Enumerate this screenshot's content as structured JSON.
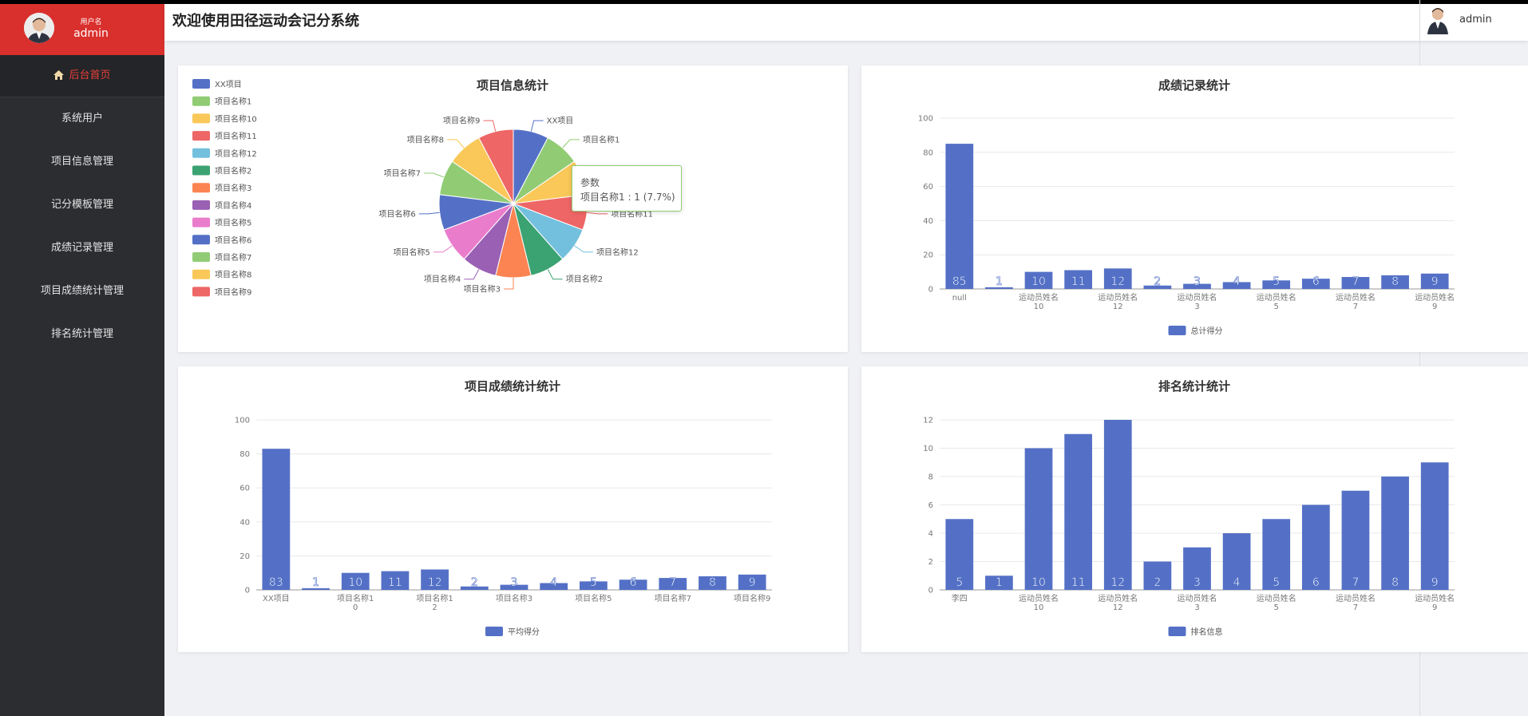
{
  "app": {
    "title": "欢迎使用田径运动会记分系统",
    "user_caption": "用户名",
    "username": "admin",
    "header_username": "admin"
  },
  "sidebar": {
    "items": [
      {
        "label": "后台首页",
        "icon": "home-icon",
        "active": true
      },
      {
        "label": "系统用户"
      },
      {
        "label": "项目信息管理"
      },
      {
        "label": "记分模板管理"
      },
      {
        "label": "成绩记录管理"
      },
      {
        "label": "项目成绩统计管理"
      },
      {
        "label": "排名统计管理"
      }
    ]
  },
  "colors": {
    "accent": "#d9302d",
    "sidebar_bg": "#2b2d31",
    "bar": "#5470c6",
    "palette": [
      "#5470c6",
      "#91cc75",
      "#fac858",
      "#ee6666",
      "#73c0de",
      "#3ba272",
      "#fc8452",
      "#9a60b4",
      "#ea7ccc"
    ]
  },
  "tooltip": {
    "title": "参数",
    "text": "项目名称1 : 1 (7.7%)"
  },
  "chart_data": [
    {
      "type": "pie",
      "title": "项目信息统计",
      "categories": [
        "XX项目",
        "项目名称1",
        "项目名称10",
        "项目名称11",
        "项目名称12",
        "项目名称2",
        "项目名称3",
        "项目名称4",
        "项目名称5",
        "项目名称6",
        "项目名称7",
        "项目名称8",
        "项目名称9"
      ],
      "values": [
        1,
        1,
        1,
        1,
        1,
        1,
        1,
        1,
        1,
        1,
        1,
        1,
        1
      ],
      "legend": "left"
    },
    {
      "type": "bar",
      "title": "成绩记录统计",
      "x_ticks": [
        "null",
        "运动员姓名10",
        "运动员姓名12",
        "运动员姓名3",
        "运动员姓名5",
        "运动员姓名7",
        "运动员姓名9"
      ],
      "series": [
        {
          "name": "总计得分",
          "values": [
            85,
            1,
            10,
            11,
            12,
            2,
            3,
            4,
            5,
            6,
            7,
            8,
            9
          ]
        }
      ],
      "ylim": [
        0,
        100
      ],
      "yticks": [
        0,
        20,
        40,
        60,
        80,
        100
      ],
      "legend": "bottom"
    },
    {
      "type": "bar",
      "title": "项目成绩统计统计",
      "x_ticks": [
        "XX项目",
        "项目名称10",
        "项目名称12",
        "项目名称3",
        "项目名称5",
        "项目名称7",
        "项目名称9"
      ],
      "series": [
        {
          "name": "平均得分",
          "values": [
            83,
            1,
            10,
            11,
            12,
            2,
            3,
            4,
            5,
            6,
            7,
            8,
            9
          ]
        }
      ],
      "ylim": [
        0,
        100
      ],
      "yticks": [
        0,
        20,
        40,
        60,
        80,
        100
      ],
      "legend": "bottom"
    },
    {
      "type": "bar",
      "title": "排名统计统计",
      "x_ticks": [
        "李四",
        "运动员姓名10",
        "运动员姓名12",
        "运动员姓名3",
        "运动员姓名5",
        "运动员姓名7",
        "运动员姓名9"
      ],
      "series": [
        {
          "name": "排名信息",
          "values": [
            5,
            1,
            10,
            11,
            12,
            2,
            3,
            4,
            5,
            6,
            7,
            8,
            9
          ]
        }
      ],
      "ylim": [
        0,
        12
      ],
      "yticks": [
        0,
        2,
        4,
        6,
        8,
        10,
        12
      ],
      "legend": "bottom"
    }
  ]
}
